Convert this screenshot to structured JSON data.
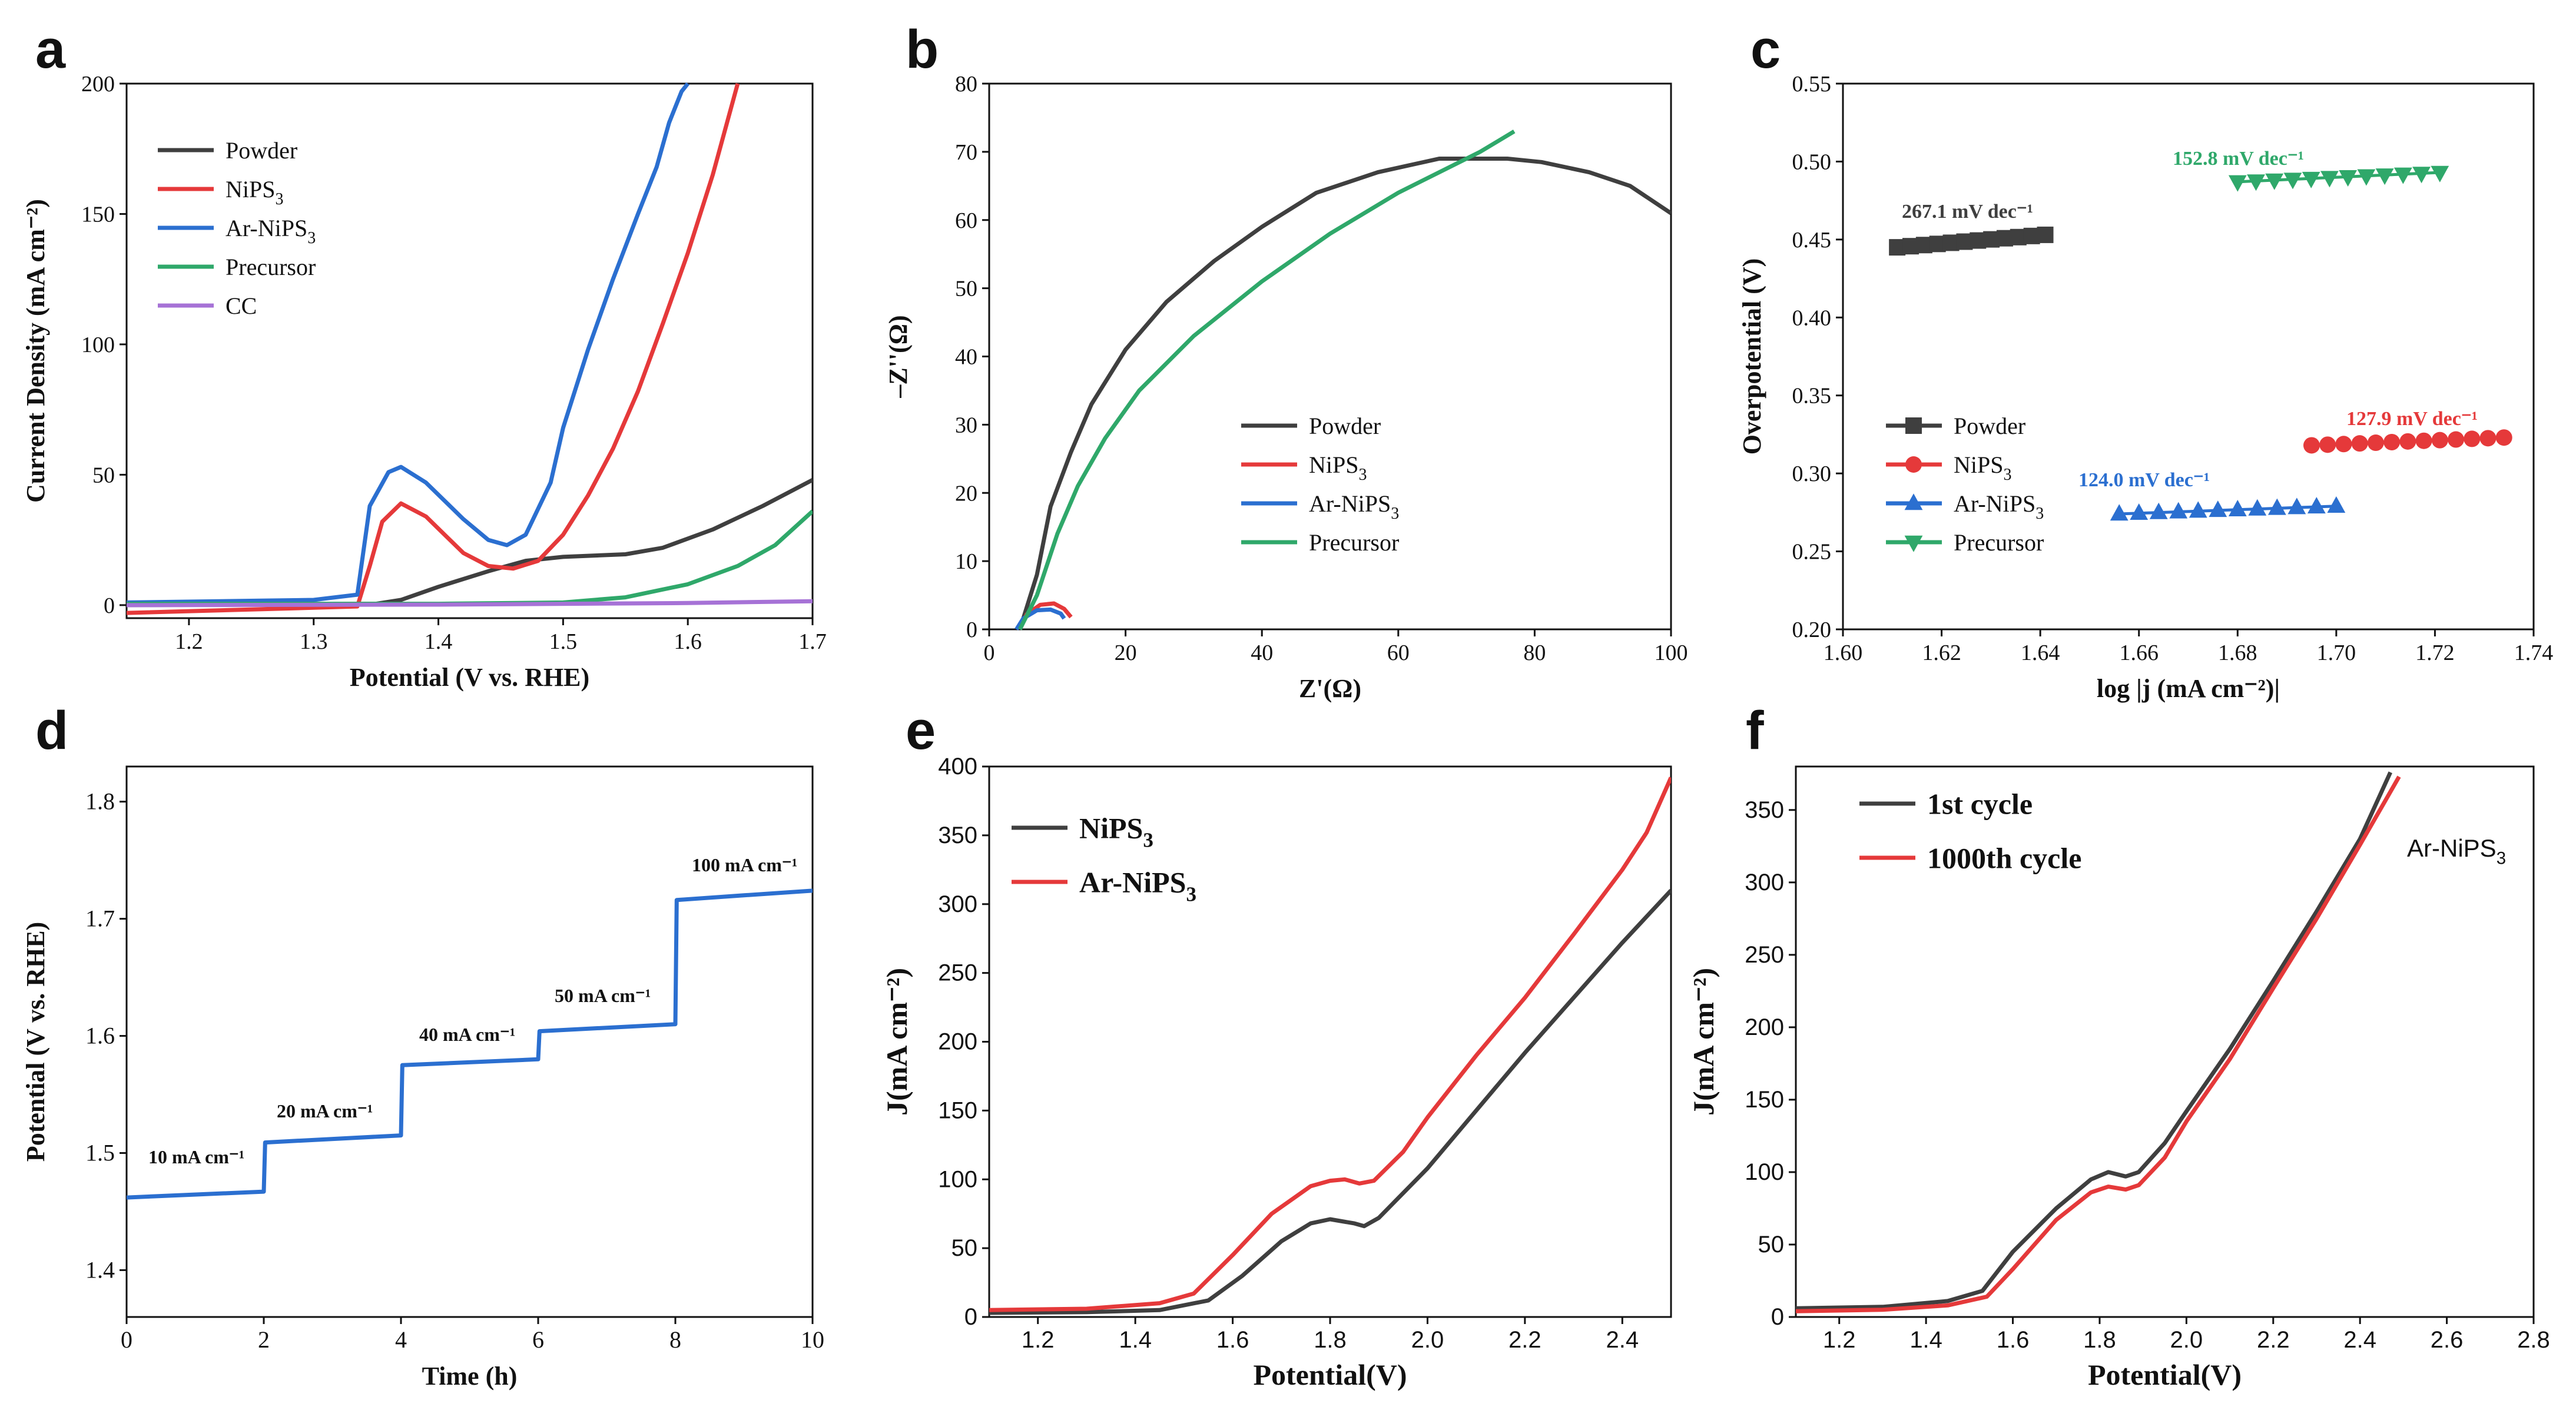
{
  "chart_data": [
    {
      "id": "a",
      "type": "line",
      "panel_label": "a",
      "xlabel": "Potential (V vs. RHE)",
      "ylabel": "Current Density (mA cm⁻²)",
      "xlim": [
        1.15,
        1.7
      ],
      "ylim": [
        -5,
        200
      ],
      "xticks": [
        1.2,
        1.3,
        1.4,
        1.5,
        1.6,
        1.7
      ],
      "yticks": [
        0,
        50,
        100,
        150,
        200
      ],
      "legend_position": "top-left",
      "series": [
        {
          "name": "Powder",
          "color": "#3f3f3f",
          "points": [
            [
              1.15,
              0
            ],
            [
              1.35,
              0.5
            ],
            [
              1.37,
              2
            ],
            [
              1.4,
              7
            ],
            [
              1.44,
              13
            ],
            [
              1.47,
              17
            ],
            [
              1.5,
              18.5
            ],
            [
              1.55,
              19.5
            ],
            [
              1.58,
              22
            ],
            [
              1.62,
              29
            ],
            [
              1.66,
              38
            ],
            [
              1.7,
              48
            ]
          ]
        },
        {
          "name": "NiPS3",
          "color": "#e5393a",
          "points": [
            [
              1.15,
              -3
            ],
            [
              1.3,
              -1
            ],
            [
              1.335,
              -0.5
            ],
            [
              1.345,
              15
            ],
            [
              1.355,
              32
            ],
            [
              1.37,
              39
            ],
            [
              1.39,
              34
            ],
            [
              1.42,
              20
            ],
            [
              1.44,
              15
            ],
            [
              1.46,
              14
            ],
            [
              1.48,
              17
            ],
            [
              1.5,
              27
            ],
            [
              1.52,
              42
            ],
            [
              1.54,
              60
            ],
            [
              1.56,
              82
            ],
            [
              1.58,
              108
            ],
            [
              1.6,
              135
            ],
            [
              1.62,
              165
            ],
            [
              1.64,
              200
            ]
          ]
        },
        {
          "name": "Ar-NiPS3",
          "color": "#2b6fd0",
          "points": [
            [
              1.15,
              1
            ],
            [
              1.3,
              2
            ],
            [
              1.335,
              4
            ],
            [
              1.345,
              38
            ],
            [
              1.36,
              51
            ],
            [
              1.37,
              53
            ],
            [
              1.39,
              47
            ],
            [
              1.42,
              33
            ],
            [
              1.44,
              25
            ],
            [
              1.455,
              23
            ],
            [
              1.47,
              27
            ],
            [
              1.49,
              47
            ],
            [
              1.5,
              68
            ],
            [
              1.52,
              98
            ],
            [
              1.54,
              125
            ],
            [
              1.56,
              150
            ],
            [
              1.575,
              168
            ],
            [
              1.585,
              185
            ],
            [
              1.595,
              197
            ],
            [
              1.6,
              200
            ]
          ]
        },
        {
          "name": "Precursor",
          "color": "#2fa86a",
          "points": [
            [
              1.15,
              0.5
            ],
            [
              1.4,
              0.5
            ],
            [
              1.5,
              1
            ],
            [
              1.55,
              3
            ],
            [
              1.6,
              8
            ],
            [
              1.64,
              15
            ],
            [
              1.67,
              23
            ],
            [
              1.7,
              36
            ]
          ]
        },
        {
          "name": "CC",
          "color": "#a672d6",
          "points": [
            [
              1.15,
              0
            ],
            [
              1.4,
              0.2
            ],
            [
              1.6,
              0.8
            ],
            [
              1.7,
              1.5
            ]
          ]
        }
      ]
    },
    {
      "id": "b",
      "type": "line",
      "panel_label": "b",
      "xlabel": "Z'(Ω)",
      "ylabel": "–Z''(Ω)",
      "xlim": [
        0,
        100
      ],
      "ylim": [
        0,
        80
      ],
      "xticks": [
        0,
        20,
        40,
        60,
        80,
        100
      ],
      "yticks": [
        0,
        10,
        20,
        30,
        40,
        50,
        60,
        70,
        80
      ],
      "legend_position": "center",
      "series": [
        {
          "name": "Powder",
          "color": "#3f3f3f",
          "points": [
            [
              4.5,
              0
            ],
            [
              7,
              8
            ],
            [
              9,
              18
            ],
            [
              12,
              26
            ],
            [
              15,
              33
            ],
            [
              20,
              41
            ],
            [
              26,
              48
            ],
            [
              33,
              54
            ],
            [
              40,
              59
            ],
            [
              48,
              64
            ],
            [
              57,
              67
            ],
            [
              66,
              69
            ],
            [
              76,
              69
            ],
            [
              81,
              68.5
            ],
            [
              88,
              67
            ],
            [
              94,
              65
            ],
            [
              100,
              61
            ]
          ]
        },
        {
          "name": "NiPS3",
          "color": "#e5393a",
          "points": [
            [
              4.5,
              0
            ],
            [
              5.5,
              2.2
            ],
            [
              7.5,
              3.6
            ],
            [
              9.5,
              3.8
            ],
            [
              11,
              3
            ],
            [
              12,
              1.8
            ]
          ]
        },
        {
          "name": "Ar-NiPS3",
          "color": "#2b6fd0",
          "points": [
            [
              4,
              0
            ],
            [
              5,
              1.6
            ],
            [
              7,
              2.8
            ],
            [
              9,
              2.9
            ],
            [
              10.5,
              2.3
            ],
            [
              11,
              1.6
            ]
          ]
        },
        {
          "name": "Precursor",
          "color": "#2fa86a",
          "points": [
            [
              4.5,
              0
            ],
            [
              7,
              5
            ],
            [
              10,
              14
            ],
            [
              13,
              21
            ],
            [
              17,
              28
            ],
            [
              22,
              35
            ],
            [
              30,
              43
            ],
            [
              40,
              51
            ],
            [
              50,
              58
            ],
            [
              60,
              64
            ],
            [
              66,
              67
            ],
            [
              72,
              70
            ],
            [
              77,
              73
            ]
          ]
        }
      ]
    },
    {
      "id": "c",
      "type": "scatter",
      "panel_label": "c",
      "xlabel": "log |j (mA cm⁻²)|",
      "ylabel": "Overpotential (V)",
      "xlim": [
        1.6,
        1.74
      ],
      "ylim": [
        0.2,
        0.55
      ],
      "xticks": [
        1.6,
        1.62,
        1.64,
        1.66,
        1.68,
        1.7,
        1.72,
        1.74
      ],
      "yticks": [
        0.2,
        0.25,
        0.3,
        0.35,
        0.4,
        0.45,
        0.5,
        0.55
      ],
      "legend_position": "bottom-left",
      "series": [
        {
          "name": "Powder",
          "color": "#3f3f3f",
          "marker": "square",
          "x_range": [
            1.611,
            1.641
          ],
          "y_range": [
            0.445,
            0.453
          ],
          "count": 12,
          "tafel": "267.1 mV dec⁻¹"
        },
        {
          "name": "NiPS3",
          "color": "#e5393a",
          "marker": "circle",
          "x_range": [
            1.695,
            1.734
          ],
          "y_range": [
            0.318,
            0.323
          ],
          "count": 13,
          "tafel": "127.9 mV dec⁻¹"
        },
        {
          "name": "Ar-NiPS3",
          "color": "#2b6fd0",
          "marker": "triangle-up",
          "x_range": [
            1.656,
            1.7
          ],
          "y_range": [
            0.274,
            0.279
          ],
          "count": 12,
          "tafel": "124.0 mV dec⁻¹"
        },
        {
          "name": "Precursor",
          "color": "#2fa86a",
          "marker": "triangle-down",
          "x_range": [
            1.68,
            1.721
          ],
          "y_range": [
            0.487,
            0.493
          ],
          "count": 12,
          "tafel": "152.8 mV dec⁻¹"
        }
      ]
    },
    {
      "id": "d",
      "type": "line",
      "panel_label": "d",
      "xlabel": "Time (h)",
      "ylabel": "Potential (V vs. RHE)",
      "xlim": [
        0,
        10
      ],
      "ylim": [
        1.36,
        1.83
      ],
      "xticks": [
        0,
        2,
        4,
        6,
        8,
        10
      ],
      "yticks": [
        1.4,
        1.5,
        1.6,
        1.7,
        1.8
      ],
      "steps": [
        {
          "label": "10 mA cm⁻¹",
          "x0": 0,
          "x1": 2,
          "y": 1.465
        },
        {
          "label": "20 mA cm⁻¹",
          "x0": 2,
          "x1": 4,
          "y": 1.513
        },
        {
          "label": "40 mA cm⁻¹",
          "x0": 4,
          "x1": 6,
          "y": 1.578
        },
        {
          "label": "50 mA cm⁻¹",
          "x0": 6,
          "x1": 8,
          "y": 1.607
        },
        {
          "label": "100 mA cm⁻¹",
          "x0": 8,
          "x1": 10,
          "y": 1.722
        }
      ],
      "series": [
        {
          "name": "Ar-NiPS3",
          "color": "#2b6fd0",
          "points": [
            [
              0,
              1.462
            ],
            [
              2,
              1.467
            ],
            [
              2.02,
              1.509
            ],
            [
              4,
              1.515
            ],
            [
              4.02,
              1.575
            ],
            [
              6,
              1.58
            ],
            [
              6.02,
              1.604
            ],
            [
              8,
              1.61
            ],
            [
              8.02,
              1.716
            ],
            [
              9,
              1.72
            ],
            [
              10,
              1.724
            ]
          ]
        }
      ]
    },
    {
      "id": "e",
      "type": "line",
      "panel_label": "e",
      "xlabel": "Potential(V)",
      "ylabel": "J(mA cm⁻²)",
      "xlim": [
        1.1,
        2.5
      ],
      "ylim": [
        0,
        400
      ],
      "xticks": [
        1.2,
        1.4,
        1.6,
        1.8,
        2.0,
        2.2,
        2.4
      ],
      "yticks": [
        0,
        50,
        100,
        150,
        200,
        250,
        300,
        350,
        400
      ],
      "legend_position": "top-left",
      "series": [
        {
          "name": "NiPS3",
          "color": "#3f3f3f",
          "points": [
            [
              1.1,
              3
            ],
            [
              1.3,
              3.5
            ],
            [
              1.45,
              5
            ],
            [
              1.55,
              12
            ],
            [
              1.62,
              30
            ],
            [
              1.7,
              55
            ],
            [
              1.76,
              68
            ],
            [
              1.8,
              71
            ],
            [
              1.85,
              68
            ],
            [
              1.87,
              66
            ],
            [
              1.9,
              72
            ],
            [
              2.0,
              108
            ],
            [
              2.1,
              150
            ],
            [
              2.2,
              192
            ],
            [
              2.3,
              232
            ],
            [
              2.4,
              272
            ],
            [
              2.5,
              310
            ]
          ]
        },
        {
          "name": "Ar-NiPS3",
          "color": "#e5393a",
          "points": [
            [
              1.1,
              5
            ],
            [
              1.3,
              6
            ],
            [
              1.45,
              10
            ],
            [
              1.52,
              17
            ],
            [
              1.6,
              45
            ],
            [
              1.68,
              75
            ],
            [
              1.76,
              95
            ],
            [
              1.8,
              99
            ],
            [
              1.83,
              100
            ],
            [
              1.86,
              97
            ],
            [
              1.89,
              99
            ],
            [
              1.95,
              120
            ],
            [
              2.0,
              145
            ],
            [
              2.1,
              190
            ],
            [
              2.2,
              232
            ],
            [
              2.3,
              278
            ],
            [
              2.4,
              325
            ],
            [
              2.45,
              352
            ],
            [
              2.5,
              392
            ]
          ]
        }
      ]
    },
    {
      "id": "f",
      "type": "line",
      "panel_label": "f",
      "xlabel": "Potential(V)",
      "ylabel": "J(mA cm⁻²)",
      "xlim": [
        1.1,
        2.8
      ],
      "ylim": [
        0,
        380
      ],
      "xticks": [
        1.2,
        1.4,
        1.6,
        1.8,
        2.0,
        2.2,
        2.4,
        2.6,
        2.8
      ],
      "yticks": [
        0,
        50,
        100,
        150,
        200,
        250,
        300,
        350
      ],
      "legend_position": "top-left",
      "annotation": "Ar-NiPS3",
      "series": [
        {
          "name": "1st cycle",
          "color": "#3f3f3f",
          "points": [
            [
              1.1,
              6
            ],
            [
              1.3,
              7
            ],
            [
              1.45,
              11
            ],
            [
              1.53,
              18
            ],
            [
              1.6,
              45
            ],
            [
              1.7,
              75
            ],
            [
              1.78,
              95
            ],
            [
              1.82,
              100
            ],
            [
              1.86,
              97
            ],
            [
              1.89,
              100
            ],
            [
              1.95,
              120
            ],
            [
              2.0,
              142
            ],
            [
              2.1,
              185
            ],
            [
              2.2,
              232
            ],
            [
              2.3,
              280
            ],
            [
              2.4,
              330
            ],
            [
              2.47,
              376
            ]
          ]
        },
        {
          "name": "1000th cycle",
          "color": "#e5393a",
          "points": [
            [
              1.1,
              4
            ],
            [
              1.3,
              5
            ],
            [
              1.45,
              8
            ],
            [
              1.54,
              14
            ],
            [
              1.6,
              33
            ],
            [
              1.7,
              67
            ],
            [
              1.78,
              86
            ],
            [
              1.82,
              90
            ],
            [
              1.86,
              88
            ],
            [
              1.89,
              91
            ],
            [
              1.95,
              110
            ],
            [
              2.0,
              135
            ],
            [
              2.1,
              178
            ],
            [
              2.2,
              227
            ],
            [
              2.3,
              275
            ],
            [
              2.4,
              326
            ],
            [
              2.49,
              373
            ]
          ]
        }
      ]
    }
  ]
}
